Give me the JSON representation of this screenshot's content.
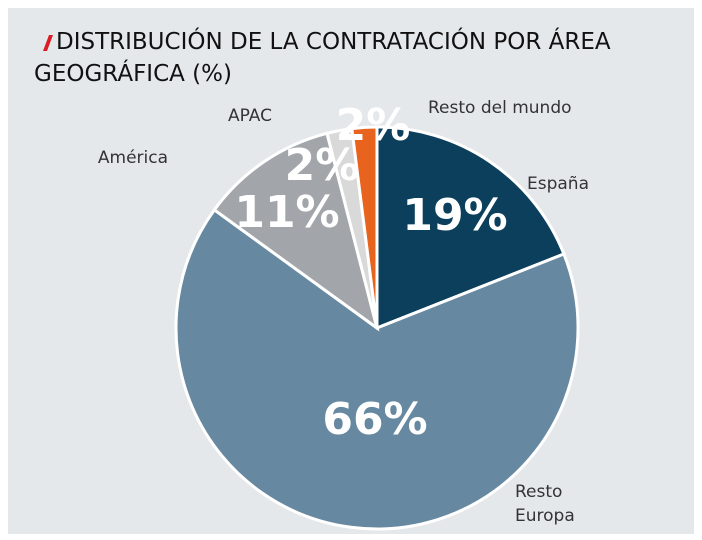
{
  "chart_data": {
    "type": "pie",
    "title": "DISTRIBUCIÓN DE LA CONTRATACIÓN POR ÁREA GEOGRÁFICA (%)",
    "categories": [
      "España",
      "Resto Europa",
      "América",
      "APAC",
      "Resto del mundo"
    ],
    "values": [
      19,
      66,
      11,
      2,
      2
    ],
    "value_labels": [
      "19%",
      "66%",
      "11%",
      "2%",
      "2%"
    ],
    "colors": [
      "#0b3f5c",
      "#6688a0",
      "#a2a5a9",
      "#d9d9d9",
      "#e8631d"
    ]
  }
}
